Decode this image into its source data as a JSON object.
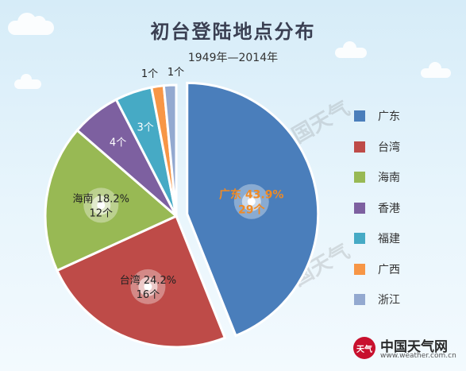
{
  "title": "初台登陆地点分布",
  "subtitle": "1949年—2014年",
  "watermark": "中国天气",
  "brand": {
    "name": "中国天气网",
    "url": "www.weather.com.cn",
    "logo_text": "天气"
  },
  "chart_data": {
    "type": "pie",
    "unit": "个",
    "start_angle_deg": 0,
    "explode_first": true,
    "legend_position": "right",
    "slices": [
      {
        "label": "广东",
        "value": 29,
        "percent_label": "43.9%",
        "count_label": "29个",
        "color": "#4a7ebb"
      },
      {
        "label": "台湾",
        "value": 16,
        "percent_label": "24.2%",
        "count_label": "16个",
        "color": "#be4b48"
      },
      {
        "label": "海南",
        "value": 12,
        "percent_label": "18.2%",
        "count_label": "12个",
        "color": "#98b954"
      },
      {
        "label": "香港",
        "value": 4,
        "percent_label": "",
        "count_label": "4个",
        "color": "#7d60a0"
      },
      {
        "label": "福建",
        "value": 3,
        "percent_label": "",
        "count_label": "3个",
        "color": "#46aac5"
      },
      {
        "label": "广西",
        "value": 1,
        "percent_label": "",
        "count_label": "1个",
        "color": "#f79646"
      },
      {
        "label": "浙江",
        "value": 1,
        "percent_label": "",
        "count_label": "1个",
        "color": "#93a9d0"
      }
    ]
  }
}
